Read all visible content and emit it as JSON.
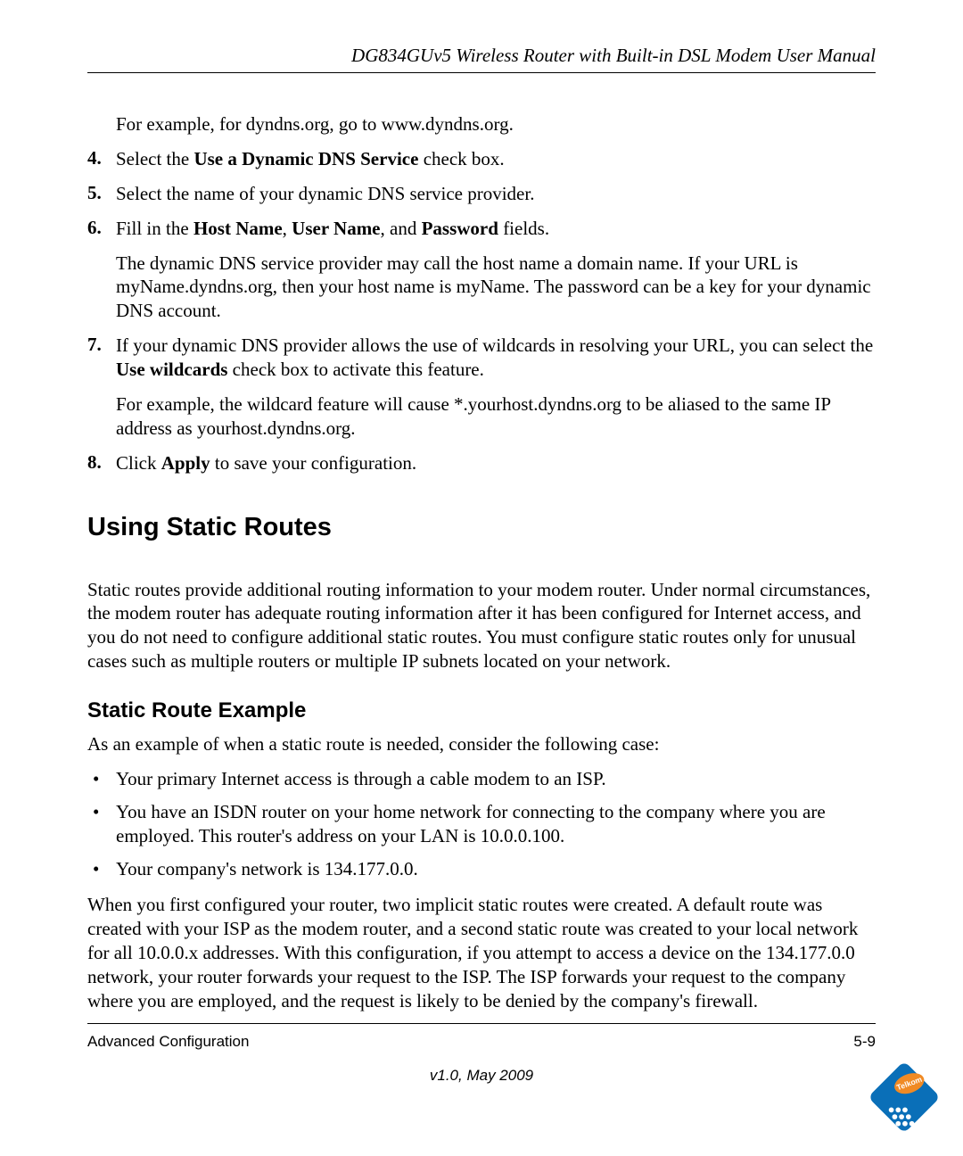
{
  "header": {
    "title": "DG834GUv5 Wireless Router with Built-in DSL Modem User Manual"
  },
  "intro_indent": "For example, for dyndns.org, go to www.dyndns.org.",
  "steps": [
    {
      "num": "4.",
      "paragraphs": [
        {
          "runs": [
            {
              "t": "Select the "
            },
            {
              "t": "Use a Dynamic DNS Service",
              "b": true
            },
            {
              "t": " check box."
            }
          ]
        }
      ]
    },
    {
      "num": "5.",
      "paragraphs": [
        {
          "runs": [
            {
              "t": "Select the name of your dynamic DNS service provider."
            }
          ]
        }
      ]
    },
    {
      "num": "6.",
      "paragraphs": [
        {
          "runs": [
            {
              "t": "Fill in the "
            },
            {
              "t": "Host Name",
              "b": true
            },
            {
              "t": ", "
            },
            {
              "t": "User Name",
              "b": true
            },
            {
              "t": ", and "
            },
            {
              "t": "Password",
              "b": true
            },
            {
              "t": " fields."
            }
          ]
        },
        {
          "runs": [
            {
              "t": "The dynamic DNS service provider may call the host name a domain name. If your URL is myName.dyndns.org, then your host name is myName. The password can be a key for your dynamic DNS account."
            }
          ]
        }
      ]
    },
    {
      "num": "7.",
      "paragraphs": [
        {
          "runs": [
            {
              "t": "If your dynamic DNS provider allows the use of wildcards in resolving your URL, you can select the "
            },
            {
              "t": "Use wildcards",
              "b": true
            },
            {
              "t": " check box to activate this feature."
            }
          ]
        },
        {
          "runs": [
            {
              "t": "For example, the wildcard feature will cause *.yourhost.dyndns.org to be aliased to the same IP address as yourhost.dyndns.org."
            }
          ]
        }
      ]
    },
    {
      "num": "8.",
      "paragraphs": [
        {
          "runs": [
            {
              "t": "Click "
            },
            {
              "t": "Apply",
              "b": true
            },
            {
              "t": " to save your configuration."
            }
          ]
        }
      ]
    }
  ],
  "section_heading": "Using Static Routes",
  "section_paragraph": "Static routes provide additional routing information to your modem router. Under normal circumstances, the modem router has adequate routing information after it has been configured for Internet access, and you do not need to configure additional static routes. You must configure static routes only for unusual cases such as multiple routers or multiple IP subnets located on your network.",
  "subsection_heading": "Static Route Example",
  "subsection_intro": "As an example of when a static route is needed, consider the following case:",
  "bullets": [
    "Your primary Internet access is through a cable modem to an ISP.",
    "You have an ISDN router on your home network for connecting to the company where you are employed. This router's address on your LAN is 10.0.0.100.",
    "Your company's network is 134.177.0.0."
  ],
  "closing_paragraph": "When you first configured your router, two implicit static routes were created. A default route was created with your ISP as the modem router, and a second static route was created to your local network for all 10.0.0.x addresses. With this configuration, if you attempt to access a device on the 134.177.0.0 network, your router forwards your request to the ISP. The ISP forwards your request to the company where you are employed, and the request is likely to be denied by the company's firewall.",
  "footer": {
    "left": "Advanced Configuration",
    "right": "5-9",
    "version": "v1.0, May 2009"
  },
  "logo": {
    "text": "Telkom",
    "diamond_color": "#0a6fb8",
    "oval_color": "#f08a24",
    "text_color": "#ffffff"
  }
}
